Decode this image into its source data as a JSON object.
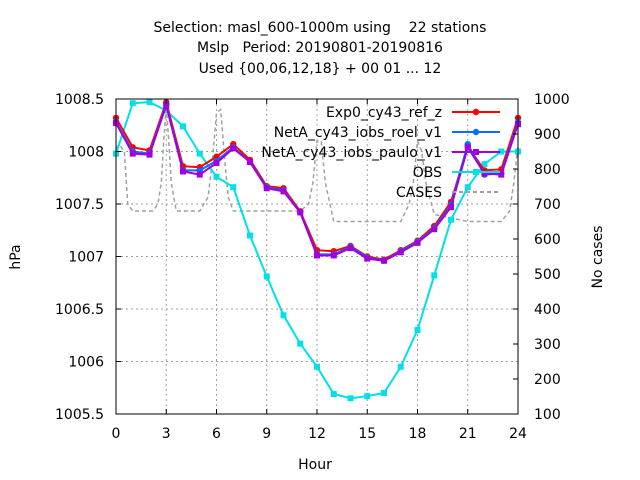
{
  "title": {
    "line1": "Selection: masl_600-1000m using    22 stations",
    "line2": "Mslp   Period: 20190801-20190816",
    "line3": "Used {00,06,12,18} + 00 01 ... 12"
  },
  "chart_data": {
    "type": "line",
    "xlabel": "Hour",
    "ylabel": "hPa",
    "y2label": "No cases",
    "xlim": [
      0,
      24
    ],
    "ylim": [
      1005.5,
      1008.5
    ],
    "y2lim": [
      100,
      1000
    ],
    "xticks": [
      "0",
      "3",
      "6",
      "9",
      "12",
      "15",
      "18",
      "21",
      "24"
    ],
    "yticks": [
      "1005.5",
      "1006",
      "1006.5",
      "1007",
      "1007.5",
      "1008",
      "1008.5"
    ],
    "y2ticks": [
      "100",
      "200",
      "300",
      "400",
      "500",
      "600",
      "700",
      "800",
      "900",
      "1000"
    ],
    "grid": true,
    "legend_position": "top-right",
    "x": [
      0,
      1,
      2,
      3,
      4,
      5,
      6,
      7,
      8,
      9,
      10,
      11,
      12,
      13,
      14,
      15,
      16,
      17,
      18,
      19,
      20,
      21,
      22,
      23,
      24
    ],
    "series": [
      {
        "name": "Exp0_cy43_ref_z",
        "color": "#ff0000",
        "marker": "plus",
        "values": [
          1008.32,
          1008.04,
          1008.01,
          1008.47,
          1007.86,
          1007.85,
          1007.95,
          1008.07,
          1007.92,
          1007.67,
          1007.65,
          1007.43,
          1007.06,
          1007.05,
          1007.1,
          1007.0,
          1006.97,
          1007.06,
          1007.15,
          1007.29,
          1007.52,
          1008.05,
          1007.82,
          1007.83,
          1008.32
        ]
      },
      {
        "name": "NetA_cy43_iobs_roel_v1",
        "color": "#0070ff",
        "marker": "plus",
        "values": [
          1008.28,
          1008.0,
          1007.98,
          1008.45,
          1007.82,
          1007.82,
          1007.91,
          1008.04,
          1007.9,
          1007.66,
          1007.63,
          1007.42,
          1007.02,
          1007.02,
          1007.09,
          1006.99,
          1006.96,
          1007.05,
          1007.14,
          1007.27,
          1007.49,
          1008.07,
          1007.78,
          1007.79,
          1008.28
        ]
      },
      {
        "name": "NetA_cy43_iobs_paulo_v1",
        "color": "#a000e0",
        "marker": "square",
        "values": [
          1008.27,
          1007.98,
          1007.97,
          1008.44,
          1007.81,
          1007.78,
          1007.89,
          1008.03,
          1007.9,
          1007.65,
          1007.62,
          1007.42,
          1007.01,
          1007.01,
          1007.08,
          1006.98,
          1006.96,
          1007.04,
          1007.13,
          1007.26,
          1007.47,
          1008.04,
          1007.79,
          1007.78,
          1008.26
        ]
      },
      {
        "name": "OBS",
        "color": "#00e0e8",
        "marker": "square",
        "values": [
          1007.98,
          1008.46,
          1008.47,
          1008.39,
          1008.24,
          1007.98,
          1007.76,
          1007.66,
          1007.2,
          1006.81,
          1006.44,
          1006.17,
          1005.95,
          1005.69,
          1005.65,
          1005.67,
          1005.7,
          1005.95,
          1006.3,
          1006.82,
          1007.35,
          1007.66,
          1007.88,
          1008.0,
          1008.0
        ]
      }
    ],
    "cases": {
      "name": "CASES",
      "color": "#a0a0a0",
      "axis": "y2",
      "x": [
        0,
        0.2,
        0.5,
        0.7,
        1.0,
        1.3,
        1.8,
        2.2,
        2.5,
        2.7,
        2.85,
        3.0,
        3.15,
        3.3,
        3.6,
        4.0,
        5.0,
        5.5,
        5.75,
        6.0,
        6.25,
        6.5,
        6.7,
        7.0,
        8.0,
        9.0,
        10.0,
        11.0,
        11.5,
        11.75,
        12.0,
        12.25,
        12.5,
        13.0,
        14.0,
        15.0,
        16.0,
        16.5,
        17.0,
        17.5,
        17.75,
        18.0,
        18.25,
        18.5,
        19.0,
        20.0,
        21.0,
        22.0,
        23.0,
        23.5,
        23.75,
        24.0
      ],
      "values": [
        860,
        870,
        850,
        700,
        680,
        680,
        680,
        680,
        700,
        760,
        880,
        980,
        880,
        760,
        680,
        680,
        680,
        720,
        820,
        960,
        970,
        820,
        720,
        680,
        680,
        680,
        680,
        680,
        700,
        760,
        880,
        880,
        760,
        650,
        650,
        650,
        650,
        650,
        650,
        700,
        760,
        880,
        850,
        760,
        670,
        660,
        650,
        650,
        650,
        680,
        760,
        870
      ]
    }
  }
}
